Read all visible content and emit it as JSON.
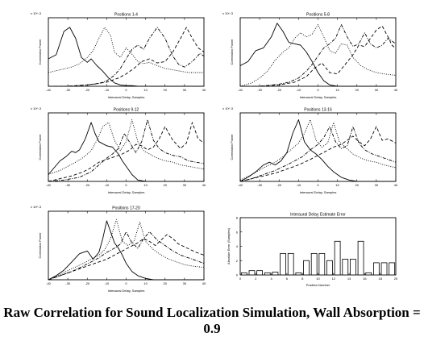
{
  "caption": "Raw Correlation for Sound Localization Simulation, Wall Absorption = 0.9",
  "chart_data": [
    {
      "type": "line",
      "title": "Positions 1-4",
      "xlabel": "Interaural Delay, Samples",
      "ylabel": "Correlation Power",
      "y_exponent": "x 10^-3",
      "xlim": [
        -40,
        40
      ],
      "xticks": [
        -40,
        -30,
        -20,
        -10,
        0,
        10,
        20,
        30,
        40
      ],
      "series": [
        {
          "style": "solid",
          "x": [
            -40,
            -36,
            -32,
            -29,
            -26,
            -23,
            -20,
            -18,
            -15,
            -12,
            -9,
            -6,
            -3,
            0,
            3,
            6,
            10,
            20,
            30,
            40
          ],
          "y": [
            0.4,
            0.46,
            0.8,
            0.86,
            0.7,
            0.42,
            0.35,
            0.4,
            0.3,
            0.22,
            0.12,
            0.05,
            0.02,
            0.01,
            0.01,
            0.0,
            0.0,
            0.0,
            0.0,
            0.0
          ]
        },
        {
          "style": "dotted",
          "x": [
            -40,
            -34,
            -28,
            -24,
            -20,
            -17,
            -14,
            -11,
            -8,
            -6,
            -3,
            0,
            3,
            6,
            9,
            12,
            16,
            20,
            24,
            28,
            32,
            36,
            40
          ],
          "y": [
            0.2,
            0.24,
            0.28,
            0.33,
            0.42,
            0.52,
            0.7,
            0.86,
            0.74,
            0.5,
            0.42,
            0.56,
            0.47,
            0.36,
            0.33,
            0.35,
            0.3,
            0.26,
            0.24,
            0.22,
            0.2,
            0.2,
            0.2
          ]
        },
        {
          "style": "dashdot",
          "x": [
            -40,
            -30,
            -20,
            -14,
            -10,
            -6,
            -3,
            0,
            3,
            6,
            9,
            12,
            16,
            20,
            24,
            27,
            30,
            34,
            38,
            40
          ],
          "y": [
            0.0,
            0.0,
            0.02,
            0.04,
            0.08,
            0.16,
            0.26,
            0.4,
            0.54,
            0.6,
            0.54,
            0.7,
            0.86,
            0.7,
            0.44,
            0.32,
            0.28,
            0.36,
            0.48,
            0.44
          ]
        },
        {
          "style": "dashed",
          "x": [
            -40,
            -30,
            -20,
            -10,
            -4,
            0,
            4,
            8,
            12,
            16,
            20,
            24,
            28,
            31,
            34,
            37,
            40
          ],
          "y": [
            0.0,
            0.0,
            0.02,
            0.06,
            0.12,
            0.18,
            0.26,
            0.36,
            0.4,
            0.34,
            0.36,
            0.5,
            0.7,
            0.86,
            0.7,
            0.56,
            0.5
          ]
        }
      ]
    },
    {
      "type": "line",
      "title": "Positions 5-8",
      "xlabel": "Interaural Delay, Samples",
      "ylabel": "Correlation Power",
      "y_exponent": "x 10^-3",
      "xlim": [
        -40,
        40
      ],
      "xticks": [
        -40,
        -30,
        -20,
        -10,
        0,
        10,
        20,
        30,
        40
      ],
      "series": [
        {
          "style": "solid",
          "x": [
            -40,
            -36,
            -32,
            -28,
            -24,
            -21,
            -18,
            -15,
            -12,
            -9,
            -6,
            -3,
            0,
            3,
            6,
            10,
            20,
            30,
            40
          ],
          "y": [
            0.3,
            0.36,
            0.52,
            0.56,
            0.72,
            0.92,
            0.8,
            0.64,
            0.62,
            0.6,
            0.5,
            0.36,
            0.2,
            0.08,
            0.02,
            0.0,
            0.0,
            0.0,
            0.0
          ]
        },
        {
          "style": "dotted",
          "x": [
            -40,
            -34,
            -30,
            -26,
            -22,
            -18,
            -15,
            -12,
            -9,
            -6,
            -3,
            0,
            3,
            6,
            9,
            12,
            15,
            18,
            22,
            26,
            30,
            34,
            40
          ],
          "y": [
            0.0,
            0.05,
            0.12,
            0.22,
            0.38,
            0.5,
            0.56,
            0.7,
            0.78,
            0.72,
            0.76,
            0.9,
            0.72,
            0.52,
            0.48,
            0.62,
            0.6,
            0.42,
            0.3,
            0.24,
            0.2,
            0.18,
            0.16
          ]
        },
        {
          "style": "dashdot",
          "x": [
            -40,
            -30,
            -20,
            -15,
            -10,
            -6,
            -3,
            0,
            3,
            6,
            9,
            12,
            15,
            18,
            21,
            24,
            27,
            30,
            33,
            36,
            40
          ],
          "y": [
            0.0,
            0.0,
            0.03,
            0.06,
            0.12,
            0.22,
            0.32,
            0.44,
            0.56,
            0.62,
            0.7,
            0.9,
            0.72,
            0.58,
            0.62,
            0.78,
            0.62,
            0.56,
            0.6,
            0.7,
            0.62
          ]
        },
        {
          "style": "dashed",
          "x": [
            -40,
            -30,
            -20,
            -12,
            -6,
            -2,
            2,
            6,
            10,
            14,
            18,
            21,
            24,
            27,
            30,
            33,
            36,
            38,
            40
          ],
          "y": [
            0.0,
            0.0,
            0.02,
            0.06,
            0.14,
            0.26,
            0.34,
            0.2,
            0.18,
            0.32,
            0.46,
            0.6,
            0.58,
            0.7,
            0.82,
            0.88,
            0.72,
            0.6,
            0.55
          ]
        }
      ]
    },
    {
      "type": "line",
      "title": "Positions 9-12",
      "xlabel": "Interaural Delay, Samples",
      "ylabel": "Correlation Power",
      "y_exponent": "x 10^-3",
      "xlim": [
        -40,
        40
      ],
      "xticks": [
        -40,
        -30,
        -20,
        -10,
        0,
        10,
        20,
        30,
        40
      ],
      "series": [
        {
          "style": "solid",
          "x": [
            -40,
            -37,
            -34,
            -31,
            -28,
            -26,
            -24,
            -21,
            -18,
            -16,
            -14,
            -12,
            -10,
            -7,
            -4,
            -2,
            0,
            3,
            6,
            10,
            20,
            30,
            40
          ],
          "y": [
            0.1,
            0.2,
            0.3,
            0.36,
            0.44,
            0.42,
            0.46,
            0.62,
            0.86,
            0.7,
            0.58,
            0.55,
            0.52,
            0.5,
            0.4,
            0.3,
            0.22,
            0.1,
            0.02,
            0.0,
            0.0,
            0.0,
            0.0
          ]
        },
        {
          "style": "dotted",
          "x": [
            -40,
            -34,
            -30,
            -26,
            -22,
            -18,
            -15,
            -12,
            -9,
            -6,
            -3,
            0,
            3,
            6,
            9,
            12,
            16,
            20,
            24,
            28,
            32,
            36,
            40
          ],
          "y": [
            0.1,
            0.16,
            0.22,
            0.28,
            0.35,
            0.45,
            0.6,
            0.8,
            0.86,
            0.6,
            0.45,
            0.58,
            0.9,
            0.58,
            0.45,
            0.4,
            0.34,
            0.3,
            0.28,
            0.24,
            0.22,
            0.2,
            0.18
          ]
        },
        {
          "style": "dashdot",
          "x": [
            -40,
            -32,
            -24,
            -18,
            -14,
            -10,
            -7,
            -4,
            -1,
            2,
            5,
            8,
            11,
            14,
            17,
            20,
            24,
            28,
            32,
            36,
            40
          ],
          "y": [
            0.0,
            0.02,
            0.06,
            0.14,
            0.24,
            0.34,
            0.4,
            0.48,
            0.7,
            0.56,
            0.42,
            0.58,
            0.9,
            0.6,
            0.48,
            0.42,
            0.38,
            0.36,
            0.3,
            0.28,
            0.26
          ]
        },
        {
          "style": "dashed",
          "x": [
            -40,
            -34,
            -28,
            -22,
            -18,
            -14,
            -10,
            -6,
            -2,
            2,
            5,
            8,
            11,
            14,
            17,
            20,
            24,
            28,
            31,
            34,
            37,
            40
          ],
          "y": [
            0.0,
            0.04,
            0.08,
            0.14,
            0.2,
            0.28,
            0.32,
            0.36,
            0.4,
            0.46,
            0.54,
            0.52,
            0.46,
            0.5,
            0.62,
            0.8,
            0.6,
            0.48,
            0.56,
            0.86,
            0.62,
            0.56
          ]
        }
      ]
    },
    {
      "type": "line",
      "title": "Positions 13-16",
      "xlabel": "Interaural Delay, Samples",
      "ylabel": "Correlation Power",
      "y_exponent": "x 10^-3",
      "xlim": [
        -40,
        40
      ],
      "xticks": [
        -40,
        -30,
        -20,
        -10,
        0,
        10,
        20,
        30,
        40
      ],
      "series": [
        {
          "style": "solid",
          "x": [
            -40,
            -36,
            -32,
            -28,
            -25,
            -22,
            -19,
            -16,
            -13,
            -10,
            -7,
            -4,
            -1,
            2,
            5,
            8,
            12,
            16,
            20,
            30,
            40
          ],
          "y": [
            0.0,
            0.06,
            0.14,
            0.24,
            0.28,
            0.24,
            0.3,
            0.42,
            0.7,
            0.9,
            0.58,
            0.46,
            0.4,
            0.32,
            0.22,
            0.14,
            0.06,
            0.02,
            0.0,
            0.0,
            0.0
          ]
        },
        {
          "style": "dotted",
          "x": [
            -40,
            -34,
            -28,
            -22,
            -18,
            -14,
            -10,
            -7,
            -4,
            -1,
            2,
            5,
            8,
            11,
            14,
            18,
            22,
            26,
            30,
            34,
            40
          ],
          "y": [
            0.02,
            0.1,
            0.2,
            0.28,
            0.36,
            0.46,
            0.56,
            0.7,
            0.9,
            0.6,
            0.5,
            0.56,
            0.86,
            0.58,
            0.5,
            0.4,
            0.34,
            0.3,
            0.28,
            0.24,
            0.2
          ]
        },
        {
          "style": "dashdot",
          "x": [
            -40,
            -34,
            -28,
            -22,
            -16,
            -12,
            -8,
            -4,
            0,
            3,
            6,
            9,
            12,
            15,
            18,
            21,
            24,
            28,
            32,
            36,
            40
          ],
          "y": [
            0.0,
            0.04,
            0.1,
            0.16,
            0.24,
            0.3,
            0.36,
            0.46,
            0.54,
            0.64,
            0.8,
            0.58,
            0.48,
            0.52,
            0.8,
            0.56,
            0.46,
            0.4,
            0.36,
            0.32,
            0.28
          ]
        },
        {
          "style": "dashed",
          "x": [
            -40,
            -34,
            -28,
            -22,
            -16,
            -10,
            -4,
            0,
            4,
            8,
            12,
            15,
            18,
            21,
            24,
            27,
            30,
            33,
            36,
            40
          ],
          "y": [
            0.0,
            0.04,
            0.08,
            0.12,
            0.18,
            0.24,
            0.32,
            0.38,
            0.44,
            0.5,
            0.54,
            0.6,
            0.66,
            0.58,
            0.52,
            0.62,
            0.8,
            0.6,
            0.62,
            0.56
          ]
        }
      ]
    },
    {
      "type": "line",
      "title": "Positions 17-20",
      "xlabel": "Interaural Delay, Samples",
      "ylabel": "Correlation Power",
      "y_exponent": "x 10^-3",
      "xlim": [
        -40,
        40
      ],
      "xticks": [
        -40,
        -30,
        -20,
        -10,
        0,
        10,
        20,
        30,
        40
      ],
      "series": [
        {
          "style": "solid",
          "x": [
            -40,
            -36,
            -32,
            -28,
            -24,
            -20,
            -17,
            -14,
            -12,
            -10,
            -8,
            -6,
            -4,
            -2,
            0,
            3,
            6,
            10,
            14,
            20,
            30,
            40
          ],
          "y": [
            0.0,
            0.06,
            0.14,
            0.26,
            0.38,
            0.42,
            0.3,
            0.4,
            0.6,
            0.86,
            0.7,
            0.54,
            0.46,
            0.36,
            0.24,
            0.12,
            0.06,
            0.02,
            0.0,
            0.0,
            0.0,
            0.0
          ]
        },
        {
          "style": "dotted",
          "x": [
            -40,
            -34,
            -28,
            -22,
            -18,
            -14,
            -11,
            -8,
            -5,
            -2,
            1,
            4,
            7,
            10,
            14,
            18,
            22,
            26,
            30,
            34,
            40
          ],
          "y": [
            0.0,
            0.08,
            0.16,
            0.24,
            0.3,
            0.36,
            0.44,
            0.6,
            0.88,
            0.56,
            0.5,
            0.56,
            0.84,
            0.56,
            0.44,
            0.36,
            0.3,
            0.26,
            0.22,
            0.2,
            0.18
          ]
        },
        {
          "style": "dashdot",
          "x": [
            -40,
            -34,
            -28,
            -22,
            -18,
            -14,
            -10,
            -6,
            -3,
            0,
            3,
            6,
            9,
            12,
            16,
            20,
            24,
            28,
            32,
            36,
            40
          ],
          "y": [
            0.0,
            0.06,
            0.12,
            0.2,
            0.26,
            0.32,
            0.4,
            0.46,
            0.52,
            0.7,
            0.54,
            0.46,
            0.6,
            0.7,
            0.58,
            0.5,
            0.42,
            0.36,
            0.32,
            0.28,
            0.24
          ]
        },
        {
          "style": "dashed",
          "x": [
            -40,
            -34,
            -28,
            -22,
            -16,
            -10,
            -6,
            -2,
            2,
            6,
            9,
            12,
            15,
            18,
            21,
            24,
            27,
            30,
            33,
            36,
            40
          ],
          "y": [
            0.0,
            0.06,
            0.12,
            0.18,
            0.24,
            0.3,
            0.36,
            0.42,
            0.48,
            0.54,
            0.6,
            0.56,
            0.5,
            0.58,
            0.66,
            0.6,
            0.52,
            0.48,
            0.44,
            0.4,
            0.36
          ]
        }
      ]
    },
    {
      "type": "bar",
      "title": "Interaural Delay Estimate Error",
      "xlabel": "Position Number",
      "ylabel": "Absolute Error (Samples)",
      "xlim": [
        0,
        20
      ],
      "ylim": [
        0,
        8
      ],
      "xticks": [
        0,
        2,
        4,
        6,
        8,
        10,
        12,
        14,
        16,
        18,
        20
      ],
      "yticks": [
        0,
        2,
        4,
        6,
        8
      ],
      "categories": [
        1,
        2,
        3,
        4,
        5,
        6,
        7,
        8,
        9,
        10,
        11,
        12,
        13,
        14,
        15,
        16,
        17,
        18,
        19,
        20
      ],
      "values": [
        0.3,
        0.6,
        0.6,
        0.3,
        0.4,
        3.0,
        3.0,
        0.3,
        2.0,
        3.0,
        3.0,
        2.0,
        4.7,
        2.2,
        2.2,
        4.7,
        0.3,
        1.7,
        1.7,
        1.7
      ]
    }
  ]
}
